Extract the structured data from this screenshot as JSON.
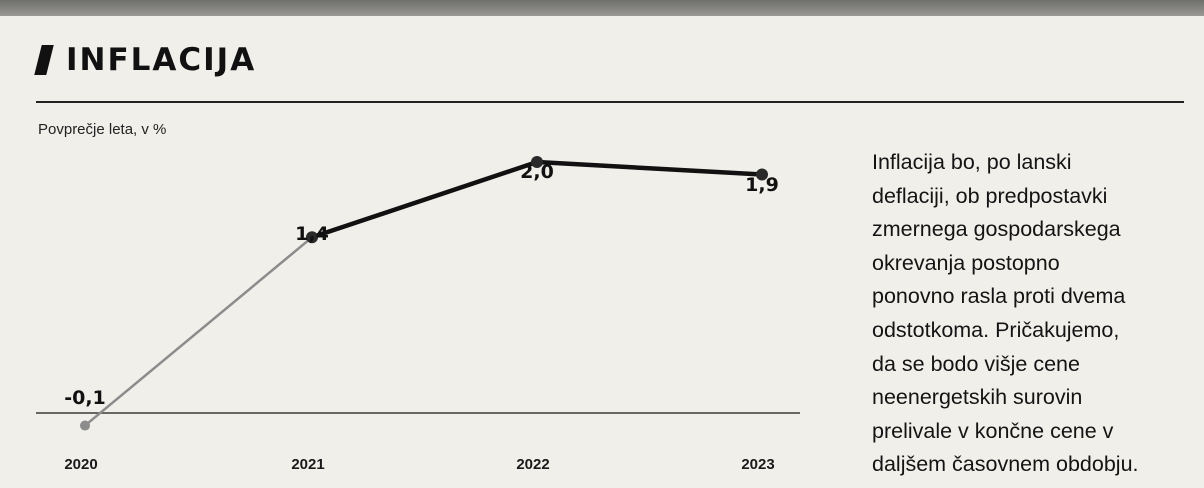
{
  "title": "INFLACIJA",
  "subtitle": "Povprečje leta, v %",
  "chart_data": {
    "type": "line",
    "title": "INFLACIJA",
    "subtitle": "Povprečje leta, v %",
    "xlabel": "",
    "ylabel": "",
    "categories": [
      "2020",
      "2021",
      "2022",
      "2023"
    ],
    "values": [
      -0.1,
      1.4,
      2.0,
      1.9
    ],
    "value_labels": [
      "-0,1",
      "1,4",
      "2,0",
      "1,9"
    ],
    "ylim": [
      -0.2,
      2.2
    ],
    "grid": false,
    "baseline_at_zero": true,
    "colors": {
      "first_segment": "#8c8c8c",
      "line": "#111111",
      "markers": "#2a2a2a"
    }
  },
  "side_text_lines": [
    "Inflacija bo, po lanski",
    "deflaciji, ob predpostavki",
    "zmernega gospodarskega",
    "okrevanja postopno",
    "ponovno rasla proti dvema",
    "odstotkoma. Pričakujemo,",
    "da se bodo višje cene",
    "neenergetskih surovin",
    "prelivale v končne cene v",
    "daljšem časovnem obdobju."
  ]
}
